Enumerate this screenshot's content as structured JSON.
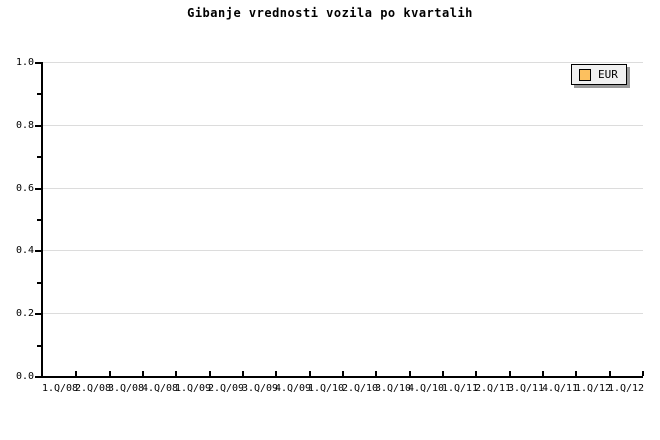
{
  "title": "Gibanje vrednosti vozila po kvartalih",
  "legend": {
    "label": "EUR",
    "swatch_color": "#fcc05f"
  },
  "colors": {
    "background": "#ffffff",
    "axis": "#000000",
    "gridline": "#dcdcdc",
    "text": "#000000",
    "legend_background": "#f0f0f0",
    "legend_border": "#000000",
    "legend_shadow": "#9a9a9a"
  },
  "chart_data": {
    "type": "line",
    "title": "Gibanje vrednosti vozila po kvartalih",
    "categories": [
      "1.Q/08",
      "2.Q/08",
      "3.Q/08",
      "4.Q/08",
      "1.Q/09",
      "2.Q/09",
      "3.Q/09",
      "4.Q/09",
      "1.Q/10",
      "2.Q/10",
      "3.Q/10",
      "4.Q/10",
      "1.Q/11",
      "2.Q/11",
      "3.Q/11",
      "4.Q/11",
      "1.Q/12",
      "1.Q/12"
    ],
    "series": [
      {
        "name": "EUR",
        "values": []
      }
    ],
    "xlabel": "",
    "ylabel": "",
    "ylim": [
      0.0,
      1.0
    ],
    "yticks": [
      0.0,
      0.2,
      0.4,
      0.6,
      0.8,
      1.0
    ],
    "ytick_labels": [
      "0.0",
      "0.2",
      "0.4",
      "0.6",
      "0.8",
      "1.0"
    ],
    "minor_yticks": [
      0.1,
      0.3,
      0.5,
      0.7,
      0.9
    ],
    "grid": "horizontal-major",
    "legend_position": "top-right"
  }
}
